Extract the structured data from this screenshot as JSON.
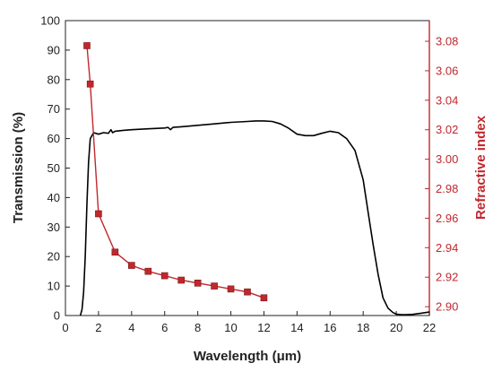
{
  "chart_data": {
    "type": "line",
    "xlabel": "Wavelength (μm)",
    "ylabel_left": "Transmission (%)",
    "ylabel_right": "Refractive index",
    "xlim": [
      0,
      22
    ],
    "ylim_left": [
      0,
      100
    ],
    "ylim_right": [
      2.894,
      3.094
    ],
    "x_ticks": [
      0,
      2,
      4,
      6,
      8,
      10,
      12,
      14,
      16,
      18,
      20,
      22
    ],
    "y_left_ticks": [
      0,
      10,
      20,
      30,
      40,
      50,
      60,
      70,
      80,
      90,
      100
    ],
    "y_right_ticks": [
      2.9,
      2.92,
      2.94,
      2.96,
      2.98,
      3.0,
      3.02,
      3.04,
      3.06,
      3.08
    ],
    "grid": false,
    "series": [
      {
        "axis": "left",
        "color": "#000000",
        "marker": "none",
        "x": [
          0.9,
          1.0,
          1.1,
          1.2,
          1.3,
          1.4,
          1.5,
          1.7,
          2.0,
          2.3,
          2.6,
          2.75,
          2.85,
          3.0,
          3.5,
          4.0,
          5.0,
          6.0,
          6.2,
          6.35,
          6.5,
          7.0,
          8.0,
          9.0,
          10.0,
          11.0,
          11.5,
          12.0,
          12.5,
          13.0,
          13.5,
          14.0,
          14.5,
          15.0,
          15.5,
          16.0,
          16.5,
          17.0,
          17.5,
          18.0,
          18.3,
          18.6,
          18.9,
          19.2,
          19.5,
          19.8,
          20.0,
          20.3,
          20.6,
          21.0,
          21.5,
          22.0
        ],
        "y": [
          0,
          2,
          8,
          20,
          38,
          52,
          60,
          62,
          61.5,
          62,
          61.8,
          63,
          62,
          62.5,
          62.8,
          63,
          63.3,
          63.6,
          63.8,
          63,
          63.8,
          64,
          64.5,
          65,
          65.5,
          65.8,
          66,
          66,
          65.8,
          65,
          63.5,
          61.5,
          61,
          61,
          61.8,
          62.5,
          62,
          60,
          56,
          46,
          35,
          24,
          14,
          6,
          2.5,
          1,
          0.5,
          0.3,
          0.3,
          0.4,
          0.8,
          1.2
        ]
      },
      {
        "axis": "right",
        "color": "#c0282d",
        "marker": "square",
        "x": [
          1.3,
          1.5,
          2,
          3,
          4,
          5,
          6,
          7,
          8,
          9,
          10,
          11,
          12
        ],
        "y": [
          3.077,
          3.051,
          2.963,
          2.937,
          2.928,
          2.924,
          2.921,
          2.918,
          2.916,
          2.914,
          2.912,
          2.91,
          2.906
        ]
      }
    ]
  }
}
